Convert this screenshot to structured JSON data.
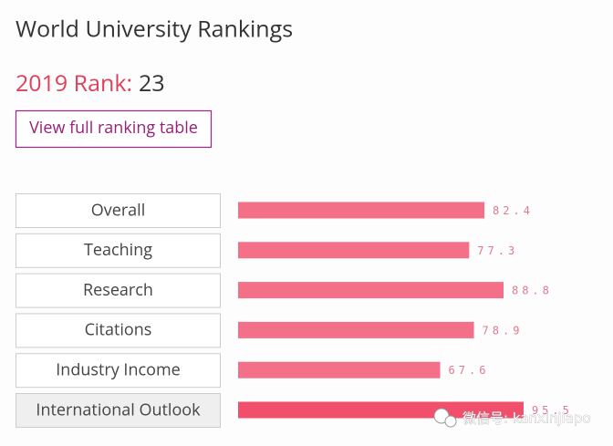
{
  "header": {
    "title": "World University Rankings",
    "rank_label": "2019 Rank:",
    "rank_value": "23"
  },
  "button": {
    "label": "View full ranking table"
  },
  "chart_data": {
    "type": "bar",
    "orientation": "horizontal",
    "categories": [
      "Overall",
      "Teaching",
      "Research",
      "Citations",
      "Industry Income",
      "International Outlook"
    ],
    "values": [
      82.4,
      77.3,
      88.8,
      78.9,
      67.6,
      95.5
    ],
    "colors": [
      "#f47088",
      "#f47088",
      "#f47088",
      "#f47088",
      "#f47088",
      "#f24f6d"
    ]
  },
  "watermark": "微信号: kanxinjiapo"
}
